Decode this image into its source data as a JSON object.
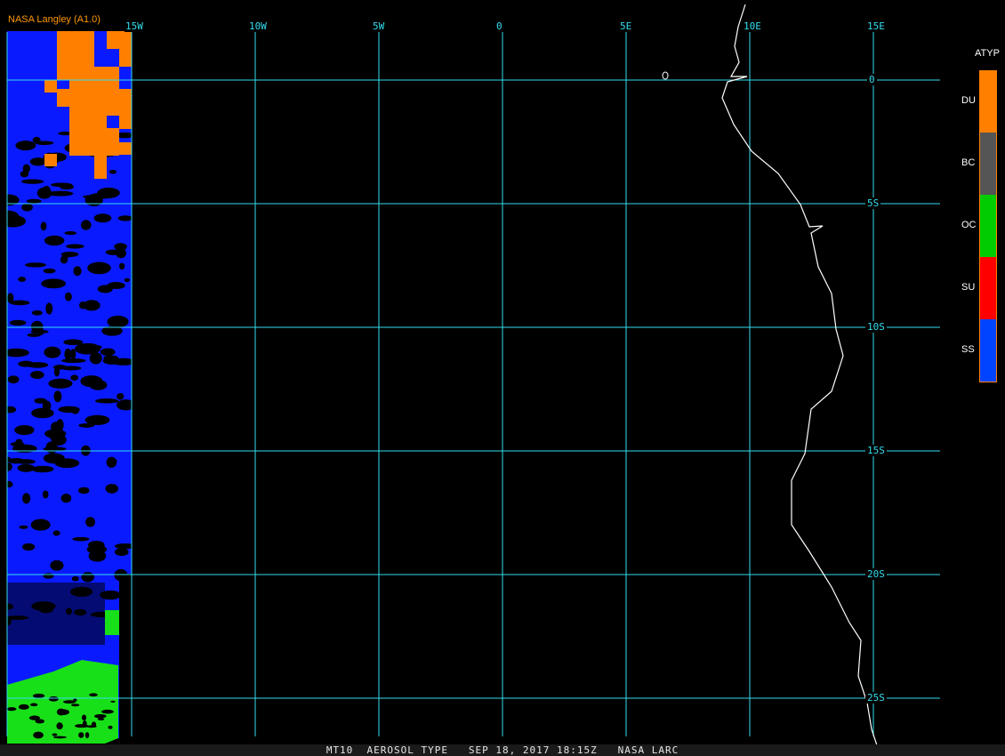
{
  "credit": "NASA Langley (A1.0)",
  "status_bar": "MT10  AEROSOL TYPE   SEP 18, 2017 18:15Z   NASA LARC",
  "map": {
    "grid_color": "#33ddee",
    "coastline_color": "#ffffff",
    "longitude_labels": [
      "15W",
      "10W",
      "5W",
      "0",
      "5E",
      "10E",
      "15E"
    ],
    "latitude_labels": [
      "0",
      "5S",
      "10S",
      "15S",
      "20S",
      "25S"
    ]
  },
  "legend": {
    "title": "ATYP",
    "items": [
      {
        "label": "DU",
        "color": "#ff8000"
      },
      {
        "label": "BC",
        "color": "#555555"
      },
      {
        "label": "OC",
        "color": "#00cc00"
      },
      {
        "label": "SU",
        "color": "#ff0000"
      },
      {
        "label": "SS",
        "color": "#0044ff"
      }
    ],
    "border_color": "#ff8000"
  }
}
